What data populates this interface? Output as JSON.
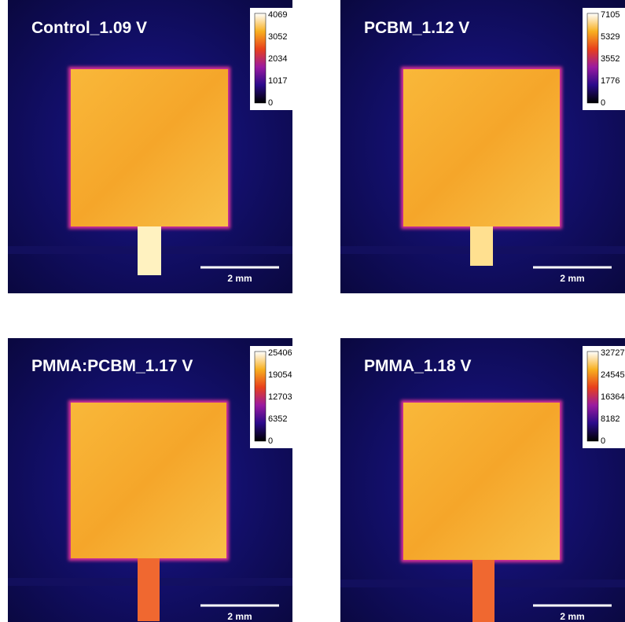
{
  "panels": [
    {
      "title": "Control_1.09 V",
      "colorbar_ticks": [
        "4069",
        "3052",
        "2034",
        "1017",
        "0"
      ],
      "scale_bar": "2 mm"
    },
    {
      "title": "PCBM_1.12 V",
      "colorbar_ticks": [
        "7105",
        "5329",
        "3552",
        "1776",
        "0"
      ],
      "scale_bar": "2 mm"
    },
    {
      "title": "PMMA:PCBM_1.17 V",
      "colorbar_ticks": [
        "25406",
        "19054",
        "12703",
        "6352",
        "0"
      ],
      "scale_bar": "2 mm"
    },
    {
      "title": "PMMA_1.18 V",
      "colorbar_ticks": [
        "32727",
        "24545",
        "16364",
        "8182",
        "0"
      ],
      "scale_bar": "2 mm"
    }
  ]
}
